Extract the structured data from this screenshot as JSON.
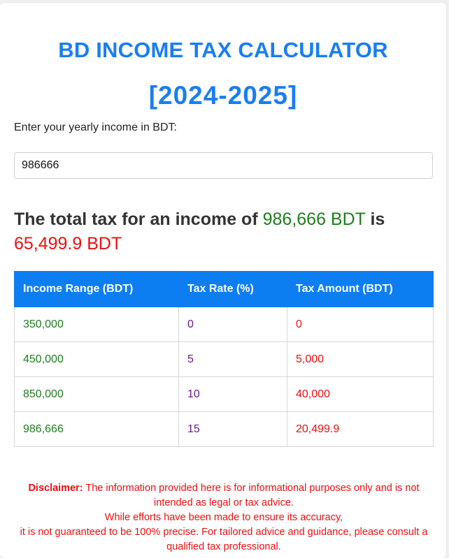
{
  "header": {
    "title": "BD INCOME TAX CALCULATOR",
    "year": "[2024-2025]"
  },
  "form": {
    "label": "Enter your yearly income in BDT:",
    "income_value": "986666"
  },
  "result": {
    "prefix": "The total tax for an income of",
    "income": "986,666 BDT",
    "mid": "is",
    "tax": "65,499.9 BDT"
  },
  "table": {
    "headers": [
      "Income Range (BDT)",
      "Tax Rate (%)",
      "Tax Amount (BDT)"
    ],
    "rows": [
      [
        "350,000",
        "0",
        "0"
      ],
      [
        "450,000",
        "5",
        "5,000"
      ],
      [
        "850,000",
        "10",
        "40,000"
      ],
      [
        "986,666",
        "15",
        "20,499.9"
      ]
    ]
  },
  "disclaimer": {
    "label": "Disclaimer:",
    "line1": "The information provided here is for informational purposes only and is not intended as legal or tax advice.",
    "line2": "While efforts have been made to ensure its accuracy,",
    "line3": "it is not guaranteed to be 100% precise. For tailored advice and guidance, please consult a qualified tax professional."
  },
  "colors": {
    "accent": "#1a7ef0",
    "table_header": "#0d7ef2",
    "income_green": "#1e7d1e",
    "tax_red": "#e81010",
    "rate_purple": "#6a1a8a"
  }
}
